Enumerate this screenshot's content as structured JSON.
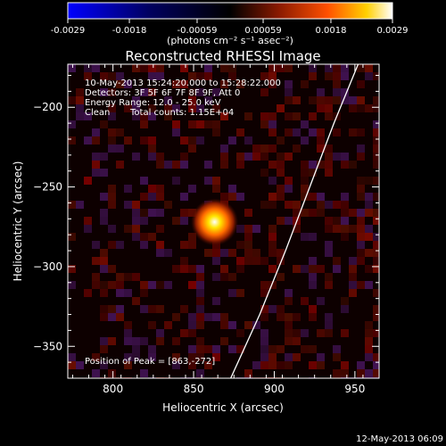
{
  "chart_data": {
    "type": "heatmap",
    "title": "Reconstructed RHESSI Image",
    "xlabel": "Heliocentric X (arcsec)",
    "ylabel": "Heliocentric Y (arcsec)",
    "xlim": [
      772,
      965
    ],
    "ylim": [
      -370,
      -173
    ],
    "x_ticks": [
      800,
      850,
      900,
      950
    ],
    "y_ticks": [
      -200,
      -250,
      -300,
      -350
    ],
    "colorbar": {
      "min": -0.0029,
      "max": 0.0029,
      "tick_values": [
        -0.0029,
        -0.0018,
        -0.00059,
        0.00059,
        0.0018,
        0.0029
      ],
      "tick_labels": [
        "-0.0029",
        "-0.0018",
        "-0.00059",
        "0.00059",
        "0.0018",
        "0.0029"
      ],
      "unit_label": "(photons cm⁻² s⁻¹ asec⁻²)",
      "colormap": "blue-black-red-yellow-white"
    },
    "annotations": {
      "time": "10-May-2013 15:24:20.000 to 15:28:22.000",
      "detectors": "Detectors: 3F 5F 6F 7F 8F 9F, Att 0",
      "energy": "Energy Range: 12.0 - 25.0 keV",
      "clean_label": "Clean",
      "counts": "Total counts: 1.15E+04",
      "peak": "Position of Peak = [863,-272]"
    },
    "source": {
      "x": 863,
      "y": -272,
      "peak": 0.0029,
      "sigma_arcsec": 7
    },
    "limb_curve": [
      [
        873,
        -370
      ],
      [
        891,
        -330
      ],
      [
        907,
        -290
      ],
      [
        922,
        -250
      ],
      [
        937,
        -210
      ],
      [
        952,
        -173
      ]
    ]
  },
  "footer": {
    "date": "12-May-2013 06:09"
  }
}
